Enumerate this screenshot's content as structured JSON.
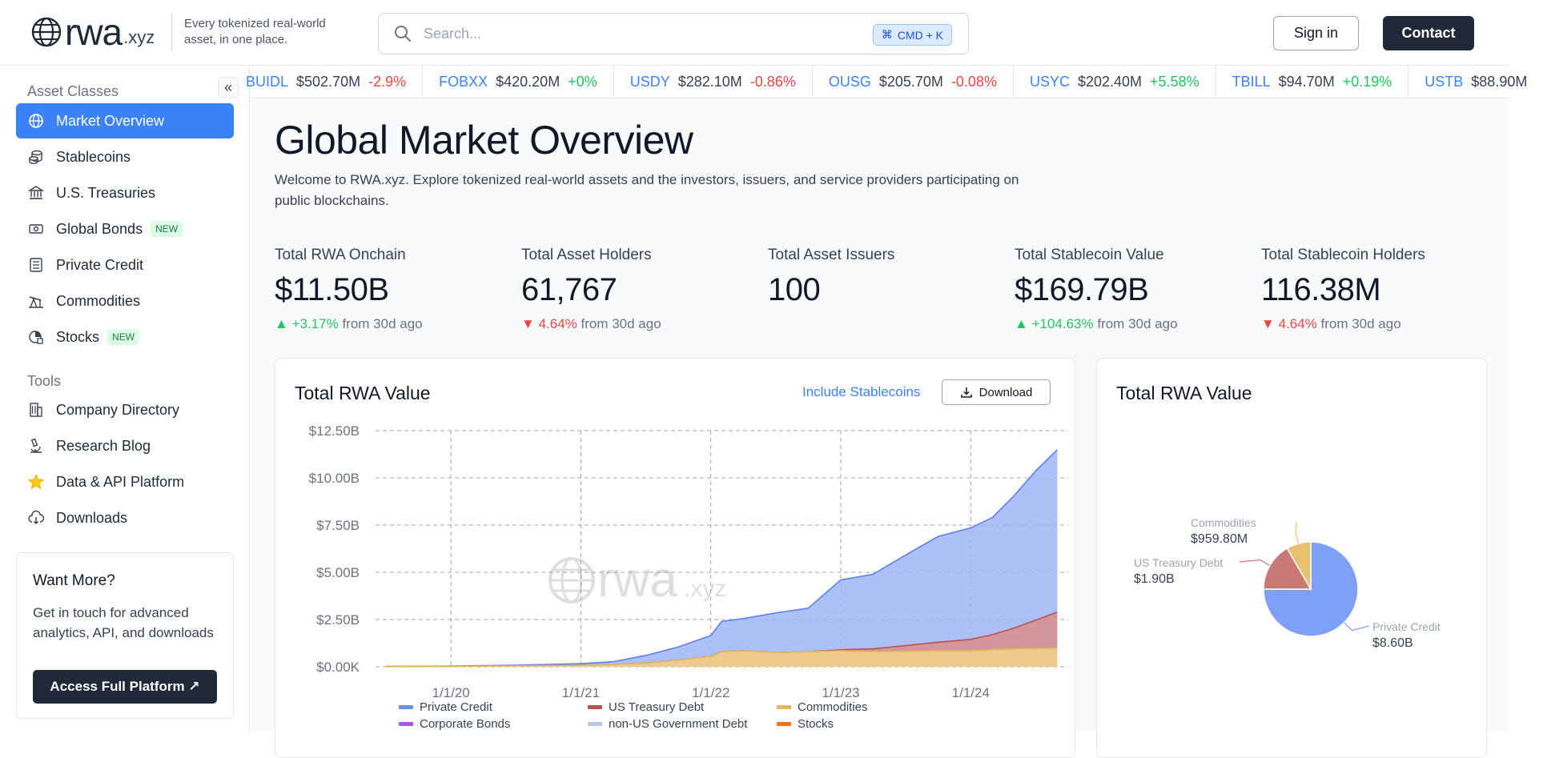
{
  "header": {
    "logo_word": "rwa",
    "logo_tld": ".xyz",
    "tagline": "Every tokenized real-world asset, in one place.",
    "search_placeholder": "Search...",
    "search_shortcut": "CMD + K",
    "signin_label": "Sign in",
    "contact_label": "Contact"
  },
  "sidebar": {
    "asset_classes_label": "Asset Classes",
    "tools_label": "Tools",
    "asset_items": [
      {
        "label": "Market Overview",
        "icon": "globe-icon",
        "active": true
      },
      {
        "label": "Stablecoins",
        "icon": "coins-icon"
      },
      {
        "label": "U.S. Treasuries",
        "icon": "bank-icon"
      },
      {
        "label": "Global Bonds",
        "icon": "banknote-icon",
        "badge": "NEW"
      },
      {
        "label": "Private Credit",
        "icon": "ledger-icon"
      },
      {
        "label": "Commodities",
        "icon": "oil-pump-icon"
      },
      {
        "label": "Stocks",
        "icon": "stocks-icon",
        "badge": "NEW"
      }
    ],
    "tool_items": [
      {
        "label": "Company Directory",
        "icon": "building-icon"
      },
      {
        "label": "Research Blog",
        "icon": "microscope-icon"
      },
      {
        "label": "Data & API Platform",
        "icon": "star-icon"
      },
      {
        "label": "Downloads",
        "icon": "cloud-download-icon"
      }
    ],
    "want_more": {
      "title": "Want More?",
      "text": "Get in touch for advanced analytics, API, and downloads",
      "button": "Access Full Platform ↗"
    }
  },
  "ticker": [
    {
      "symbol": "BUIDL",
      "value": "$502.70M",
      "change": "-2.9%",
      "dir": "neg"
    },
    {
      "symbol": "FOBXX",
      "value": "$420.20M",
      "change": "+0%",
      "dir": "pos"
    },
    {
      "symbol": "USDY",
      "value": "$282.10M",
      "change": "-0.86%",
      "dir": "neg"
    },
    {
      "symbol": "OUSG",
      "value": "$205.70M",
      "change": "-0.08%",
      "dir": "neg"
    },
    {
      "symbol": "USYC",
      "value": "$202.40M",
      "change": "+5.58%",
      "dir": "pos"
    },
    {
      "symbol": "TBILL",
      "value": "$94.70M",
      "change": "+0.19%",
      "dir": "pos"
    },
    {
      "symbol": "USTB",
      "value": "$88.90M",
      "change": "",
      "dir": "pos"
    }
  ],
  "main": {
    "title": "Global Market Overview",
    "description": "Welcome to RWA.xyz. Explore tokenized real-world assets and the investors, issuers, and service providers participating on public blockchains."
  },
  "stats": [
    {
      "label": "Total RWA Onchain",
      "value": "$11.50B",
      "arrow": "▲",
      "change": "+3.17%",
      "dir": "up",
      "suffix": "from 30d ago"
    },
    {
      "label": "Total Asset Holders",
      "value": "61,767",
      "arrow": "▼",
      "change": "4.64%",
      "dir": "down",
      "suffix": "from 30d ago"
    },
    {
      "label": "Total Asset Issuers",
      "value": "100",
      "arrow": "",
      "change": "",
      "dir": "",
      "suffix": ""
    },
    {
      "label": "Total Stablecoin Value",
      "value": "$169.79B",
      "arrow": "▲",
      "change": "+104.63%",
      "dir": "up",
      "suffix": "from 30d ago"
    },
    {
      "label": "Total Stablecoin Holders",
      "value": "116.38M",
      "arrow": "▼",
      "change": "4.64%",
      "dir": "down",
      "suffix": "from 30d ago"
    }
  ],
  "area_card": {
    "title": "Total RWA Value",
    "include_link": "Include Stablecoins",
    "download_label": "Download",
    "watermark_word": "rwa",
    "watermark_tld": ".xyz"
  },
  "pie_card": {
    "title": "Total RWA Value"
  },
  "colors": {
    "private_credit": "#6b8ef5",
    "us_treasury": "#c0504d",
    "commodities": "#e2b659",
    "corporate_bonds": "#a855f7",
    "non_us_gov": "#b8c9e8",
    "stocks": "#f97316",
    "accent": "#3b82f6"
  },
  "chart_data": [
    {
      "type": "area",
      "title": "Total RWA Value",
      "x_ticks": [
        "1/1/20",
        "1/1/21",
        "1/1/22",
        "1/1/23",
        "1/1/24"
      ],
      "y_ticks": [
        "$0.00K",
        "$2.50B",
        "$5.00B",
        "$7.50B",
        "$10.00B",
        "$12.50B"
      ],
      "ylim": [
        0,
        12.5
      ],
      "y_unit": "$B",
      "x": [
        "2019-07",
        "2020-01",
        "2020-07",
        "2021-01",
        "2021-04",
        "2021-07",
        "2021-10",
        "2022-01",
        "2022-02",
        "2022-04",
        "2022-07",
        "2022-10",
        "2023-01",
        "2023-04",
        "2023-07",
        "2023-10",
        "2024-01",
        "2024-03",
        "2024-05",
        "2024-07",
        "2024-09"
      ],
      "series": [
        {
          "name": "Commodities",
          "values": [
            0.02,
            0.03,
            0.05,
            0.08,
            0.12,
            0.2,
            0.35,
            0.55,
            0.8,
            0.85,
            0.75,
            0.8,
            0.85,
            0.8,
            0.82,
            0.85,
            0.85,
            0.9,
            0.95,
            0.97,
            0.99
          ]
        },
        {
          "name": "US Treasury Debt",
          "values": [
            0,
            0,
            0,
            0,
            0,
            0,
            0,
            0,
            0,
            0,
            0,
            0,
            0.05,
            0.15,
            0.3,
            0.45,
            0.6,
            0.8,
            1.1,
            1.5,
            1.9
          ]
        },
        {
          "name": "Private Credit",
          "values": [
            0,
            0.01,
            0.03,
            0.08,
            0.15,
            0.4,
            0.7,
            1.1,
            1.6,
            1.7,
            2.1,
            2.3,
            3.7,
            3.95,
            4.8,
            5.6,
            5.9,
            6.2,
            7.0,
            7.9,
            8.6
          ]
        },
        {
          "name": "Corporate Bonds",
          "values": [
            0,
            0,
            0,
            0,
            0,
            0,
            0,
            0,
            0,
            0,
            0,
            0,
            0,
            0,
            0,
            0,
            0,
            0,
            0,
            0,
            0
          ]
        },
        {
          "name": "non-US Government Debt",
          "values": [
            0,
            0,
            0,
            0,
            0,
            0,
            0,
            0,
            0,
            0,
            0,
            0,
            0,
            0,
            0,
            0,
            0,
            0,
            0,
            0,
            0
          ]
        },
        {
          "name": "Stocks",
          "values": [
            0,
            0,
            0,
            0,
            0,
            0,
            0,
            0,
            0,
            0,
            0,
            0,
            0,
            0,
            0,
            0,
            0,
            0,
            0,
            0,
            0
          ]
        }
      ],
      "grid": true,
      "legend": "bottom"
    },
    {
      "type": "pie",
      "title": "Total RWA Value",
      "slices": [
        {
          "name": "Private Credit",
          "label": "$8.60B",
          "value": 8.6
        },
        {
          "name": "US Treasury Debt",
          "label": "$1.90B",
          "value": 1.9
        },
        {
          "name": "Commodities",
          "label": "$959.80M",
          "value": 0.9598
        }
      ]
    }
  ]
}
